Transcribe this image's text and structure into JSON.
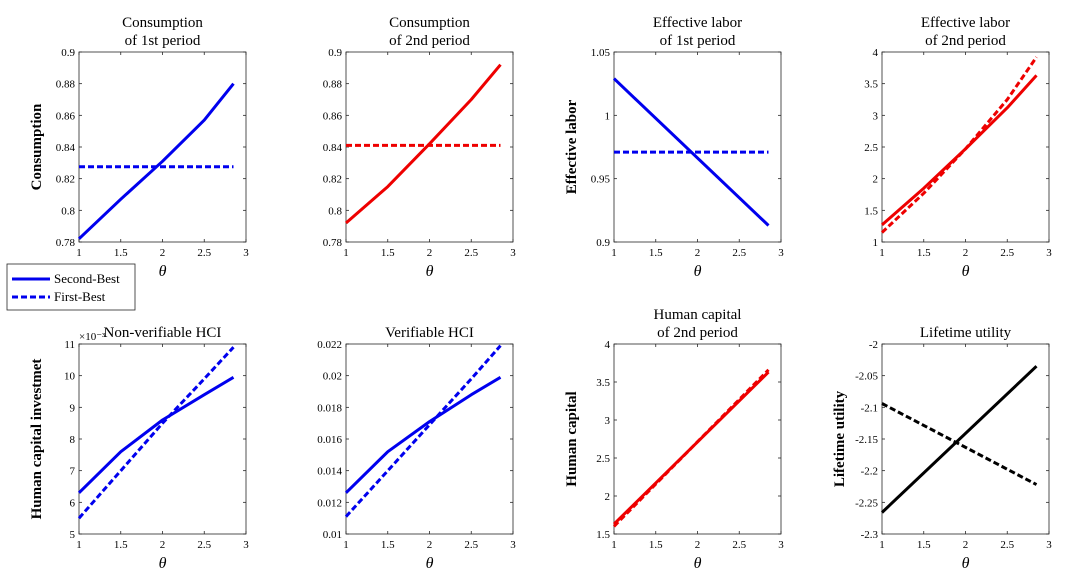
{
  "legend": {
    "placement": "left, between rows",
    "entries": [
      {
        "label": "Second-Best",
        "style": "solid",
        "color": "#0000ee"
      },
      {
        "label": "First-Best",
        "style": "dashed",
        "color": "#0000ee"
      }
    ]
  },
  "chart_data": [
    {
      "type": "line",
      "title": [
        "Consumption",
        "of 1st period"
      ],
      "xlabel": "θ",
      "ylabel": "Consumption",
      "xlim": [
        1,
        3
      ],
      "ylim": [
        0.78,
        0.9
      ],
      "xticks": [
        1,
        1.5,
        2,
        2.5,
        3
      ],
      "yticks": [
        0.78,
        0.8,
        0.82,
        0.84,
        0.86,
        0.88,
        0.9
      ],
      "yticklabels": [
        "0.78",
        "0.8",
        "0.82",
        "0.84",
        "0.86",
        "0.88",
        "0.9"
      ],
      "series": [
        {
          "name": "Second-Best",
          "style": "solid",
          "color": "#0000ee",
          "x": [
            1,
            1.5,
            2,
            2.5,
            2.85
          ],
          "y": [
            0.782,
            0.807,
            0.831,
            0.857,
            0.88
          ]
        },
        {
          "name": "First-Best",
          "style": "dashed",
          "color": "#0000ee",
          "x": [
            1,
            2.85
          ],
          "y": [
            0.8275,
            0.8275
          ]
        }
      ]
    },
    {
      "type": "line",
      "title": [
        "Consumption",
        "of 2nd period"
      ],
      "xlabel": "θ",
      "ylabel": "",
      "xlim": [
        1,
        3
      ],
      "ylim": [
        0.78,
        0.9
      ],
      "xticks": [
        1,
        1.5,
        2,
        2.5,
        3
      ],
      "yticks": [
        0.78,
        0.8,
        0.82,
        0.84,
        0.86,
        0.88,
        0.9
      ],
      "yticklabels": [
        "0.78",
        "0.8",
        "0.82",
        "0.84",
        "0.86",
        "0.88",
        "0.9"
      ],
      "series": [
        {
          "name": "Second-Best",
          "style": "solid",
          "color": "#ee0000",
          "x": [
            1,
            1.5,
            2,
            2.5,
            2.85
          ],
          "y": [
            0.792,
            0.815,
            0.842,
            0.87,
            0.892
          ]
        },
        {
          "name": "First-Best",
          "style": "dashed",
          "color": "#ee0000",
          "x": [
            1,
            2.85
          ],
          "y": [
            0.841,
            0.841
          ]
        }
      ]
    },
    {
      "type": "line",
      "title": [
        "Effective labor",
        "of 1st period"
      ],
      "xlabel": "θ",
      "ylabel": "Effective labor",
      "xlim": [
        1,
        3
      ],
      "ylim": [
        0.9,
        1.05
      ],
      "xticks": [
        1,
        1.5,
        2,
        2.5,
        3
      ],
      "yticks": [
        0.9,
        0.95,
        1,
        1.05
      ],
      "yticklabels": [
        "0.9",
        "0.95",
        "1",
        "1.05"
      ],
      "series": [
        {
          "name": "Second-Best",
          "style": "solid",
          "color": "#0000ee",
          "x": [
            1,
            2.85
          ],
          "y": [
            1.029,
            0.913
          ]
        },
        {
          "name": "First-Best",
          "style": "dashed",
          "color": "#0000ee",
          "x": [
            1,
            2.85
          ],
          "y": [
            0.971,
            0.971
          ]
        }
      ]
    },
    {
      "type": "line",
      "title": [
        "Effective labor",
        "of 2nd period"
      ],
      "xlabel": "θ",
      "ylabel": "",
      "xlim": [
        1,
        3
      ],
      "ylim": [
        1,
        4
      ],
      "xticks": [
        1,
        1.5,
        2,
        2.5,
        3
      ],
      "yticks": [
        1,
        1.5,
        2,
        2.5,
        3,
        3.5,
        4
      ],
      "yticklabels": [
        "1",
        "1.5",
        "2",
        "2.5",
        "3",
        "3.5",
        "4"
      ],
      "series": [
        {
          "name": "Second-Best",
          "style": "solid",
          "color": "#ee0000",
          "x": [
            1,
            1.5,
            2,
            2.5,
            2.85
          ],
          "y": [
            1.27,
            1.85,
            2.47,
            3.12,
            3.63
          ]
        },
        {
          "name": "First-Best",
          "style": "dashed",
          "color": "#ee0000",
          "x": [
            1,
            1.5,
            2,
            2.5,
            2.85
          ],
          "y": [
            1.15,
            1.77,
            2.47,
            3.25,
            3.92
          ]
        }
      ]
    },
    {
      "type": "line",
      "title": [
        "Non-verifiable HCI"
      ],
      "xlabel": "θ",
      "ylabel": "Human capital investmet",
      "exponent_label": "×10⁻³",
      "xlim": [
        1,
        3
      ],
      "ylim": [
        5,
        11
      ],
      "xticks": [
        1,
        1.5,
        2,
        2.5,
        3
      ],
      "yticks": [
        5,
        6,
        7,
        8,
        9,
        10,
        11
      ],
      "yticklabels": [
        "5",
        "6",
        "7",
        "8",
        "9",
        "10",
        "11"
      ],
      "series": [
        {
          "name": "Second-Best",
          "style": "solid",
          "color": "#0000ee",
          "x": [
            1,
            1.5,
            2,
            2.5,
            2.85
          ],
          "y": [
            6.3,
            7.6,
            8.6,
            9.4,
            9.95
          ]
        },
        {
          "name": "First-Best",
          "style": "dashed",
          "color": "#0000ee",
          "x": [
            1,
            1.5,
            2,
            2.5,
            2.85
          ],
          "y": [
            5.5,
            7.0,
            8.5,
            9.9,
            10.9
          ]
        }
      ]
    },
    {
      "type": "line",
      "title": [
        "Verifiable HCI"
      ],
      "xlabel": "θ",
      "ylabel": "",
      "xlim": [
        1,
        3
      ],
      "ylim": [
        0.01,
        0.022
      ],
      "xticks": [
        1,
        1.5,
        2,
        2.5,
        3
      ],
      "yticks": [
        0.01,
        0.012,
        0.014,
        0.016,
        0.018,
        0.02,
        0.022
      ],
      "yticklabels": [
        "0.01",
        "0.012",
        "0.014",
        "0.016",
        "0.018",
        "0.02",
        "0.022"
      ],
      "series": [
        {
          "name": "Second-Best",
          "style": "solid",
          "color": "#0000ee",
          "x": [
            1,
            1.5,
            2,
            2.5,
            2.85
          ],
          "y": [
            0.0126,
            0.0152,
            0.0171,
            0.0188,
            0.0199
          ]
        },
        {
          "name": "First-Best",
          "style": "dashed",
          "color": "#0000ee",
          "x": [
            1,
            1.5,
            2,
            2.5,
            2.85
          ],
          "y": [
            0.0111,
            0.014,
            0.0169,
            0.0198,
            0.0219
          ]
        }
      ]
    },
    {
      "type": "line",
      "title": [
        "Human capital",
        "of 2nd period"
      ],
      "xlabel": "θ",
      "ylabel": "Human capital",
      "xlim": [
        1,
        3
      ],
      "ylim": [
        1.5,
        4
      ],
      "xticks": [
        1,
        1.5,
        2,
        2.5,
        3
      ],
      "yticks": [
        1.5,
        2,
        2.5,
        3,
        3.5,
        4
      ],
      "yticklabels": [
        "1.5",
        "2",
        "2.5",
        "3",
        "3.5",
        "4"
      ],
      "series": [
        {
          "name": "Second-Best",
          "style": "solid",
          "color": "#ee0000",
          "x": [
            1,
            2.85
          ],
          "y": [
            1.63,
            3.63
          ]
        },
        {
          "name": "First-Best",
          "style": "dashed",
          "color": "#ee0000",
          "x": [
            1,
            2.85
          ],
          "y": [
            1.6,
            3.66
          ]
        }
      ]
    },
    {
      "type": "line",
      "title": [
        "Lifetime utility"
      ],
      "xlabel": "θ",
      "ylabel": "Lifetime utility",
      "xlim": [
        1,
        3
      ],
      "ylim": [
        -2.3,
        -2
      ],
      "xticks": [
        1,
        1.5,
        2,
        2.5,
        3
      ],
      "yticks": [
        -2.3,
        -2.25,
        -2.2,
        -2.15,
        -2.1,
        -2.05,
        -2
      ],
      "yticklabels": [
        "-2.3",
        "-2.25",
        "-2.2",
        "-2.15",
        "-2.1",
        "-2.05",
        "-2"
      ],
      "series": [
        {
          "name": "Second-Best",
          "style": "solid",
          "color": "#000000",
          "x": [
            1,
            2.85
          ],
          "y": [
            -2.266,
            -2.035
          ]
        },
        {
          "name": "First-Best",
          "style": "dashed",
          "color": "#000000",
          "x": [
            1,
            2.85
          ],
          "y": [
            -2.094,
            -2.222
          ]
        }
      ]
    }
  ]
}
